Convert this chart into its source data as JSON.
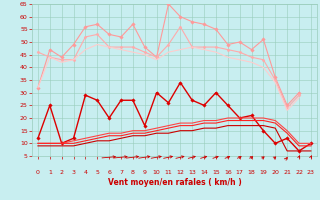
{
  "xlabel": "Vent moyen/en rafales ( km/h )",
  "x": [
    0,
    1,
    2,
    3,
    4,
    5,
    6,
    7,
    8,
    9,
    10,
    11,
    12,
    13,
    14,
    15,
    16,
    17,
    18,
    19,
    20,
    21,
    22,
    23
  ],
  "series": [
    {
      "name": "rafales_max_spike",
      "color": "#ff9999",
      "linewidth": 0.8,
      "marker": "D",
      "markersize": 1.8,
      "values": [
        32,
        47,
        44,
        49,
        56,
        57,
        53,
        52,
        57,
        48,
        44,
        65,
        60,
        58,
        57,
        55,
        49,
        50,
        47,
        51,
        36,
        25,
        30,
        null
      ]
    },
    {
      "name": "rafales_moy",
      "color": "#ffaaaa",
      "linewidth": 0.8,
      "marker": "D",
      "markersize": 1.5,
      "values": [
        46,
        44,
        43,
        43,
        52,
        53,
        48,
        48,
        48,
        46,
        44,
        49,
        56,
        48,
        48,
        48,
        47,
        46,
        44,
        43,
        35,
        24,
        29,
        null
      ]
    },
    {
      "name": "rafales_smooth",
      "color": "#ffcccc",
      "linewidth": 0.8,
      "marker": null,
      "markersize": 0,
      "values": [
        32,
        44,
        42,
        43,
        47,
        49,
        48,
        47,
        46,
        45,
        43,
        46,
        47,
        48,
        47,
        46,
        44,
        43,
        42,
        40,
        34,
        23,
        28,
        null
      ]
    },
    {
      "name": "vent_max",
      "color": "#dd0000",
      "linewidth": 1.0,
      "marker": "D",
      "markersize": 1.8,
      "values": [
        12,
        25,
        10,
        12,
        29,
        27,
        20,
        27,
        27,
        17,
        30,
        26,
        34,
        27,
        25,
        30,
        25,
        20,
        21,
        15,
        10,
        12,
        7,
        10
      ]
    },
    {
      "name": "vent_moy_upper",
      "color": "#ff4444",
      "linewidth": 0.8,
      "marker": null,
      "markersize": 0,
      "values": [
        10,
        10,
        10,
        11,
        12,
        13,
        14,
        14,
        15,
        15,
        16,
        17,
        18,
        18,
        19,
        19,
        20,
        20,
        20,
        20,
        19,
        15,
        10,
        10
      ]
    },
    {
      "name": "vent_moy_mid",
      "color": "#ff2222",
      "linewidth": 0.8,
      "marker": null,
      "markersize": 0,
      "values": [
        10,
        10,
        10,
        10,
        11,
        12,
        13,
        13,
        14,
        14,
        15,
        16,
        17,
        17,
        18,
        18,
        19,
        19,
        19,
        19,
        18,
        14,
        9,
        9
      ]
    },
    {
      "name": "vent_min",
      "color": "#cc0000",
      "linewidth": 0.8,
      "marker": null,
      "markersize": 0,
      "values": [
        9,
        9,
        9,
        9,
        10,
        11,
        11,
        12,
        13,
        13,
        14,
        14,
        15,
        15,
        16,
        16,
        17,
        17,
        17,
        17,
        16,
        7,
        7,
        7
      ]
    }
  ],
  "ylim": [
    5,
    65
  ],
  "yticks": [
    5,
    10,
    15,
    20,
    25,
    30,
    35,
    40,
    45,
    50,
    55,
    60,
    65
  ],
  "xlim": [
    -0.5,
    23.5
  ],
  "xticks": [
    0,
    1,
    2,
    3,
    4,
    5,
    6,
    7,
    8,
    9,
    10,
    11,
    12,
    13,
    14,
    15,
    16,
    17,
    18,
    19,
    20,
    21,
    22,
    23
  ],
  "bg_color": "#c8eef0",
  "grid_color": "#99ccbb",
  "tick_color": "#cc0000",
  "label_color": "#cc0000",
  "arrow_color": "#cc0000",
  "arrow_angles": [
    90,
    85,
    80,
    78,
    75,
    72,
    68,
    65,
    60,
    55,
    50,
    45,
    42,
    38,
    35,
    32,
    30,
    27,
    25,
    22,
    20,
    10,
    5,
    5
  ]
}
